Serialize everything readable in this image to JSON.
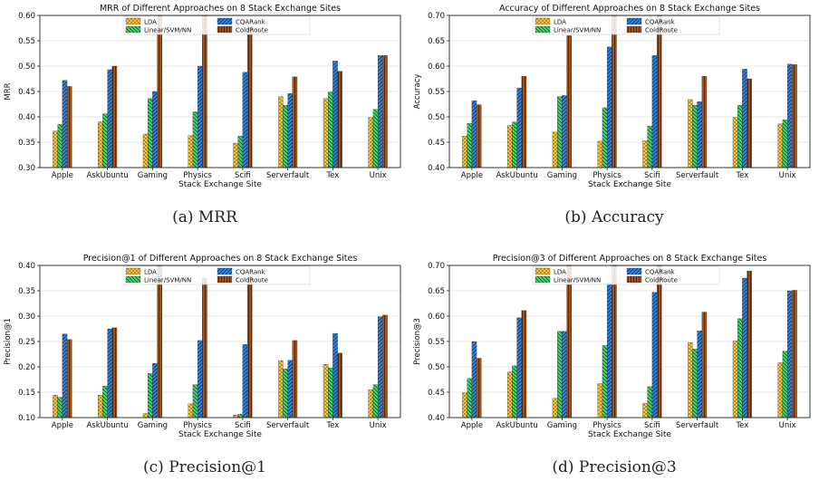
{
  "legend_labels": [
    "LDA",
    "Linear/SVM/NN",
    "CQARank",
    "ColdRoute"
  ],
  "colors": {
    "LDA": "#f4c542",
    "Linear/SVM/NN": "#3ee06a",
    "CQARank": "#3a86d8",
    "ColdRoute": "#a0521a"
  },
  "captions": [
    {
      "label": "(a)",
      "text": "MRR"
    },
    {
      "label": "(b)",
      "text": "Accuracy"
    },
    {
      "label": "(c)",
      "text": "Precision@1"
    },
    {
      "label": "(d)",
      "text": "Precision@3"
    }
  ],
  "chart_data": [
    {
      "type": "bar",
      "title": "MRR of Different Approaches on 8 Stack Exchange Sites",
      "xlabel": "Stack Exchange Site",
      "ylabel": "MRR",
      "ylim": [
        0.3,
        0.6
      ],
      "yticks": [
        "0.30",
        "0.35",
        "0.40",
        "0.45",
        "0.50",
        "0.55",
        "0.60"
      ],
      "categories": [
        "Apple",
        "AskUbuntu",
        "Gaming",
        "Physics",
        "Scifi",
        "Serverfault",
        "Tex",
        "Unix"
      ],
      "legend": "top-center",
      "series": [
        {
          "name": "LDA",
          "values": [
            0.372,
            0.39,
            0.366,
            0.363,
            0.348,
            0.44,
            0.436,
            0.399
          ]
        },
        {
          "name": "Linear/SVM/NN",
          "values": [
            0.385,
            0.406,
            0.436,
            0.41,
            0.362,
            0.423,
            0.449,
            0.415
          ]
        },
        {
          "name": "CQARank",
          "values": [
            0.472,
            0.493,
            0.45,
            0.5,
            0.488,
            0.446,
            0.51,
            0.521
          ]
        },
        {
          "name": "ColdRoute",
          "values": [
            0.46,
            0.5,
            0.6,
            0.6,
            0.578,
            0.479,
            0.49,
            0.521
          ]
        }
      ]
    },
    {
      "type": "bar",
      "title": "Accuracy of Different Approaches on 8 Stack Exchange Sites",
      "xlabel": "Stack Exchange Site",
      "ylabel": "Accuracy",
      "ylim": [
        0.4,
        0.7
      ],
      "yticks": [
        "0.40",
        "0.45",
        "0.50",
        "0.55",
        "0.60",
        "0.65",
        "0.70"
      ],
      "categories": [
        "Apple",
        "AskUbuntu",
        "Gaming",
        "Physics",
        "Scifi",
        "Serverfault",
        "Tex",
        "Unix"
      ],
      "legend": "top-center",
      "series": [
        {
          "name": "LDA",
          "values": [
            0.462,
            0.483,
            0.47,
            0.452,
            0.453,
            0.534,
            0.499,
            0.486
          ]
        },
        {
          "name": "Linear/SVM/NN",
          "values": [
            0.487,
            0.49,
            0.54,
            0.518,
            0.482,
            0.523,
            0.523,
            0.494
          ]
        },
        {
          "name": "CQARank",
          "values": [
            0.532,
            0.557,
            0.542,
            0.638,
            0.621,
            0.53,
            0.594,
            0.604
          ]
        },
        {
          "name": "ColdRoute",
          "values": [
            0.524,
            0.58,
            0.66,
            0.7,
            0.7,
            0.58,
            0.575,
            0.603
          ]
        }
      ]
    },
    {
      "type": "bar",
      "title": "Precision@1 of Different Approaches on 8 Stack Exchange Sites",
      "xlabel": "Stack Exchange Site",
      "ylabel": "Precision@1",
      "ylim": [
        0.1,
        0.4
      ],
      "yticks": [
        "0.10",
        "0.15",
        "0.20",
        "0.25",
        "0.30",
        "0.35",
        "0.40"
      ],
      "categories": [
        "Apple",
        "AskUbuntu",
        "Gaming",
        "Physics",
        "Scifi",
        "Serverfault",
        "Tex",
        "Unix"
      ],
      "legend": "top-center",
      "series": [
        {
          "name": "LDA",
          "values": [
            0.144,
            0.144,
            0.108,
            0.127,
            0.105,
            0.212,
            0.205,
            0.155
          ]
        },
        {
          "name": "Linear/SVM/NN",
          "values": [
            0.14,
            0.162,
            0.187,
            0.165,
            0.107,
            0.196,
            0.198,
            0.165
          ]
        },
        {
          "name": "CQARank",
          "values": [
            0.265,
            0.275,
            0.207,
            0.252,
            0.244,
            0.213,
            0.266,
            0.299
          ]
        },
        {
          "name": "ColdRoute",
          "values": [
            0.254,
            0.277,
            0.4,
            0.375,
            0.378,
            0.252,
            0.227,
            0.302
          ]
        }
      ]
    },
    {
      "type": "bar",
      "title": "Precision@3 of Different Approaches on 8 Stack Exchange Sites",
      "xlabel": "Stack Exchange Site",
      "ylabel": "Precision@3",
      "ylim": [
        0.4,
        0.7
      ],
      "yticks": [
        "0.40",
        "0.45",
        "0.50",
        "0.55",
        "0.60",
        "0.65",
        "0.70"
      ],
      "categories": [
        "Apple",
        "AskUbuntu",
        "Gaming",
        "Physics",
        "Scifi",
        "Serverfault",
        "Tex",
        "Unix"
      ],
      "legend": "top-center",
      "series": [
        {
          "name": "LDA",
          "values": [
            0.449,
            0.49,
            0.438,
            0.467,
            0.428,
            0.548,
            0.551,
            0.508
          ]
        },
        {
          "name": "Linear/SVM/NN",
          "values": [
            0.477,
            0.502,
            0.57,
            0.542,
            0.461,
            0.535,
            0.595,
            0.531
          ]
        },
        {
          "name": "CQARank",
          "values": [
            0.55,
            0.597,
            0.57,
            0.665,
            0.647,
            0.571,
            0.675,
            0.65
          ]
        },
        {
          "name": "ColdRoute",
          "values": [
            0.517,
            0.611,
            0.7,
            0.7,
            0.7,
            0.608,
            0.689,
            0.651
          ]
        }
      ]
    }
  ]
}
